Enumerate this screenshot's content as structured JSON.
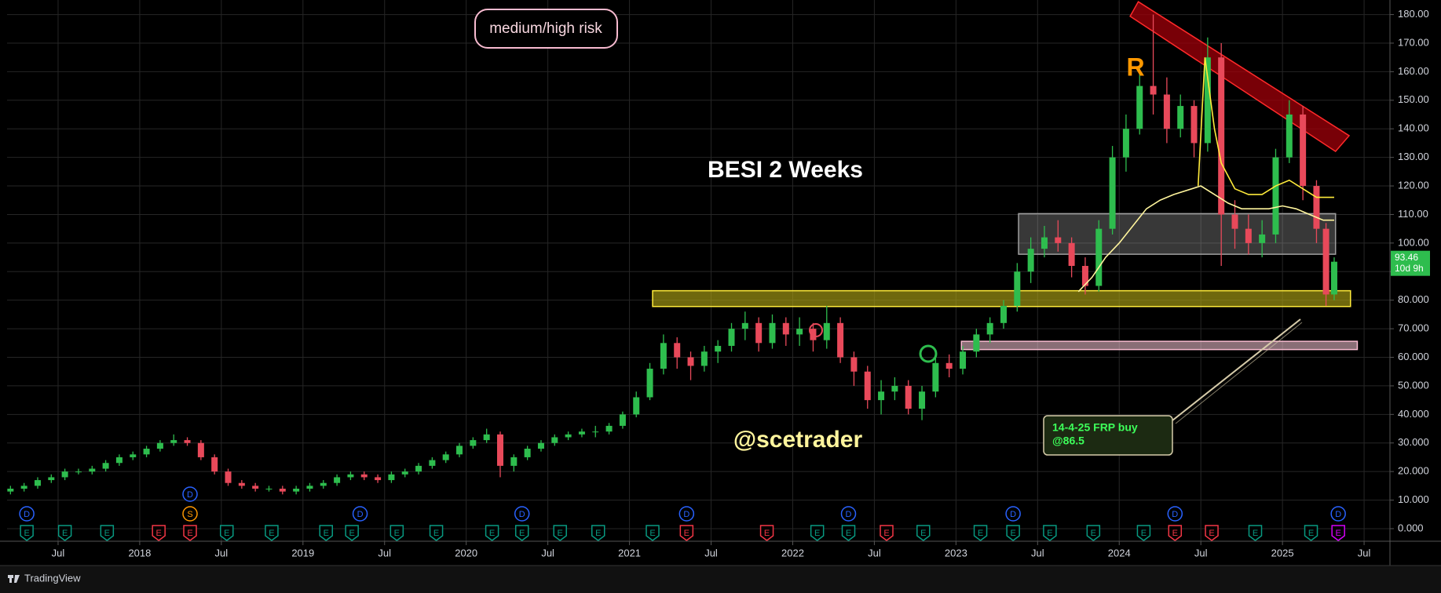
{
  "chart_data": {
    "type": "candlestick",
    "title": "BESI 2 Weeks",
    "watermark": "@scetrader",
    "risk_label": "medium/high risk",
    "pattern_label": "R",
    "annotation": [
      "14-4-25 FRP buy",
      "@86.5"
    ],
    "countdown": "10d 9h",
    "branding": "TradingView",
    "up_color": "#2ebd4e",
    "down_color": "#e8495a",
    "grid": true,
    "xlim": [
      2.25,
      103.9
    ],
    "ylim": [
      -4.4,
      185.1
    ],
    "xticks": [
      {
        "value": 6,
        "label": "Jul"
      },
      {
        "value": 12,
        "label": "2018"
      },
      {
        "value": 18,
        "label": "Jul"
      },
      {
        "value": 24,
        "label": "2019"
      },
      {
        "value": 30,
        "label": "Jul"
      },
      {
        "value": 36,
        "label": "2020"
      },
      {
        "value": 42,
        "label": "Jul"
      },
      {
        "value": 48,
        "label": "2021"
      },
      {
        "value": 54,
        "label": "Jul"
      },
      {
        "value": 60,
        "label": "2022"
      },
      {
        "value": 66,
        "label": "Jul"
      },
      {
        "value": 72,
        "label": "2023"
      },
      {
        "value": 78,
        "label": "Jul"
      },
      {
        "value": 84,
        "label": "2024"
      },
      {
        "value": 90,
        "label": "Jul"
      },
      {
        "value": 96,
        "label": "2025"
      },
      {
        "value": 102,
        "label": "Jul"
      }
    ],
    "yticks": [
      {
        "value": 0,
        "label": "0.000"
      },
      {
        "value": 10,
        "label": "10.000"
      },
      {
        "value": 20,
        "label": "20.000"
      },
      {
        "value": 30,
        "label": "30.000"
      },
      {
        "value": 40,
        "label": "40.000"
      },
      {
        "value": 50,
        "label": "50.000"
      },
      {
        "value": 60,
        "label": "60.000"
      },
      {
        "value": 70,
        "label": "70.000"
      },
      {
        "value": 80,
        "label": "80.000"
      },
      {
        "value": 90,
        "label": "90.000"
      },
      {
        "value": 100,
        "label": "100.00"
      },
      {
        "value": 110,
        "label": "110.00"
      },
      {
        "value": 120,
        "label": "120.00"
      },
      {
        "value": 130,
        "label": "130.00"
      },
      {
        "value": 140,
        "label": "140.00"
      },
      {
        "value": 150,
        "label": "150.00"
      },
      {
        "value": 160,
        "label": "160.00"
      },
      {
        "value": 170,
        "label": "170.00"
      },
      {
        "value": 180,
        "label": "180.00"
      }
    ],
    "x": [
      2.5,
      3.5,
      4.5,
      5.5,
      6.5,
      7.5,
      8.5,
      9.5,
      10.5,
      11.5,
      12.5,
      13.5,
      14.5,
      15.5,
      16.5,
      17.5,
      18.5,
      19.5,
      20.5,
      21.5,
      22.5,
      23.5,
      24.5,
      25.5,
      26.5,
      27.5,
      28.5,
      29.5,
      30.5,
      31.5,
      32.5,
      33.5,
      34.5,
      35.5,
      36.5,
      37.5,
      38.5,
      39.5,
      40.5,
      41.5,
      42.5,
      43.5,
      44.5,
      45.5,
      46.5,
      47.5,
      48.5,
      49.5,
      50.5,
      51.5,
      52.5,
      53.5,
      54.5,
      55.5,
      56.5,
      57.5,
      58.5,
      59.5,
      60.5,
      61.5,
      62.5,
      63.5,
      64.5,
      65.5,
      66.5,
      67.5,
      68.5,
      69.5,
      70.5,
      71.5,
      72.5,
      73.5,
      74.5,
      75.5,
      76.5,
      77.5,
      78.5,
      79.5,
      80.5,
      81.5,
      82.5,
      83.5,
      84.5,
      85.5,
      86.5,
      87.5,
      88.5,
      89.5,
      90.5,
      91.5,
      92.5,
      93.5,
      94.5,
      95.5,
      96.5,
      97.5,
      98.5,
      99.2,
      99.8
    ],
    "open": [
      13,
      14,
      15,
      17,
      18,
      20,
      20,
      21,
      23,
      25,
      26,
      28,
      30,
      31,
      30,
      25,
      20,
      16,
      15,
      14,
      14,
      13,
      14,
      15,
      16,
      18,
      19,
      18,
      17,
      19,
      20,
      22,
      24,
      26,
      29,
      31,
      33,
      22,
      25,
      28,
      30,
      32,
      33,
      34,
      34,
      36,
      40,
      46,
      56,
      65,
      60,
      57,
      62,
      64,
      70,
      72,
      65,
      72,
      68,
      70,
      66,
      72,
      60,
      55,
      45,
      48,
      50,
      42,
      48,
      58,
      56,
      62,
      68,
      72,
      78,
      90,
      98,
      102,
      100,
      92,
      85,
      105,
      130,
      140,
      155,
      152,
      140,
      148,
      135,
      165,
      110,
      105,
      100,
      103,
      130,
      145,
      120,
      105,
      82
    ],
    "high": [
      15,
      16,
      18,
      19,
      21,
      21,
      22,
      24,
      26,
      27,
      29,
      31,
      33,
      32,
      31,
      26,
      21,
      17,
      16,
      15,
      15,
      15,
      16,
      17,
      19,
      20,
      20,
      19,
      20,
      21,
      23,
      25,
      27,
      30,
      32,
      35,
      34,
      26,
      29,
      31,
      33,
      34,
      35,
      36,
      37,
      41,
      48,
      58,
      68,
      67,
      62,
      64,
      66,
      72,
      76,
      74,
      75,
      74,
      74,
      72,
      78,
      74,
      62,
      57,
      52,
      53,
      52,
      50,
      60,
      61,
      64,
      70,
      74,
      80,
      93,
      102,
      106,
      108,
      102,
      95,
      108,
      134,
      145,
      162,
      180,
      158,
      152,
      150,
      172,
      170,
      115,
      110,
      108,
      133,
      150,
      148,
      122,
      107,
      95
    ],
    "low": [
      12,
      13,
      14,
      16,
      17,
      19,
      19,
      20,
      22,
      24,
      25,
      27,
      29,
      29,
      24,
      19,
      15,
      14,
      13,
      13,
      12,
      12,
      13,
      14,
      15,
      17,
      17,
      16,
      16,
      18,
      19,
      21,
      23,
      25,
      28,
      30,
      18,
      20,
      24,
      27,
      29,
      31,
      32,
      32,
      33,
      35,
      39,
      45,
      54,
      56,
      52,
      55,
      58,
      62,
      66,
      62,
      63,
      64,
      64,
      62,
      63,
      58,
      50,
      42,
      40,
      45,
      40,
      38,
      46,
      53,
      54,
      60,
      65,
      70,
      76,
      86,
      95,
      97,
      88,
      82,
      83,
      103,
      125,
      138,
      145,
      135,
      137,
      130,
      132,
      92,
      98,
      96,
      95,
      100,
      128,
      115,
      100,
      78,
      80
    ],
    "close": [
      14,
      15,
      17,
      18,
      20,
      20,
      21,
      23,
      25,
      26,
      28,
      30,
      31,
      30,
      25,
      20,
      16,
      15,
      14,
      14,
      13,
      14,
      15,
      16,
      18,
      19,
      18,
      17,
      19,
      20,
      22,
      24,
      26,
      29,
      31,
      33,
      22,
      25,
      28,
      30,
      32,
      33,
      34,
      34,
      36,
      40,
      46,
      56,
      65,
      60,
      57,
      62,
      64,
      70,
      72,
      65,
      72,
      68,
      70,
      66,
      72,
      60,
      55,
      45,
      48,
      50,
      42,
      48,
      58,
      56,
      62,
      68,
      72,
      78,
      90,
      98,
      102,
      100,
      92,
      85,
      105,
      130,
      140,
      155,
      152,
      140,
      148,
      135,
      165,
      110,
      105,
      100,
      103,
      130,
      145,
      120,
      105,
      82,
      93.46
    ],
    "moving_averages": [
      {
        "color": "#fff59d",
        "x": [
          81,
          82,
          83,
          84,
          85,
          86,
          87,
          88,
          90,
          91,
          92,
          93,
          94,
          95,
          96,
          97,
          98,
          99,
          99.8
        ],
        "values": [
          83,
          88,
          95,
          100,
          106,
          112,
          115,
          117,
          120,
          117,
          114,
          112,
          112,
          112,
          113,
          112,
          110,
          108,
          108
        ]
      },
      {
        "color": "#ffeb3b",
        "x": [
          89.8,
          90.3,
          91,
          91.5,
          92.5,
          93.5,
          94.5,
          95.5,
          96.5,
          97.5,
          98.5,
          99.8
        ],
        "values": [
          120,
          165,
          140,
          128,
          119,
          117,
          117,
          120,
          122,
          119,
          116,
          116
        ]
      }
    ],
    "zones": [
      {
        "fill": "rgba(160,0,10,0.75)",
        "stroke": "#ff2a2a",
        "points": [
          [
            85.4,
            184.5
          ],
          [
            100.9,
            137.6
          ],
          [
            99.9,
            132.1
          ],
          [
            84.8,
            179.4
          ]
        ]
      },
      {
        "fill": "rgba(200,200,200,0.28)",
        "stroke": "#9e9e9e",
        "points": [
          [
            76.6,
            110.3
          ],
          [
            99.9,
            110.3
          ],
          [
            99.9,
            96.1
          ],
          [
            76.6,
            96.1
          ]
        ]
      },
      {
        "fill": "rgba(170,160,20,0.65)",
        "stroke": "#ffeb3b",
        "points": [
          [
            49.7,
            83.3
          ],
          [
            101,
            83.3
          ],
          [
            101,
            77.8
          ],
          [
            49.7,
            77.8
          ]
        ]
      },
      {
        "fill": "rgba(250,200,215,0.55)",
        "stroke": "#f8bbd0",
        "points": [
          [
            72.4,
            65.6
          ],
          [
            101.5,
            65.6
          ],
          [
            101.5,
            62.7
          ],
          [
            72.4,
            62.7
          ]
        ]
      }
    ],
    "dividends": [
      {
        "x": 3.7,
        "label": "D"
      },
      {
        "x": 15.7,
        "label": "D"
      },
      {
        "x": 28.2,
        "label": "D"
      },
      {
        "x": 40.1,
        "label": "D"
      },
      {
        "x": 52.2,
        "label": "D"
      },
      {
        "x": 64.1,
        "label": "D"
      },
      {
        "x": 76.2,
        "label": "D"
      },
      {
        "x": 88.1,
        "label": "D"
      },
      {
        "x": 100.1,
        "label": "D"
      }
    ],
    "dividend_color": "#2962ff",
    "splits": [
      {
        "x": 15.7,
        "label": "S"
      }
    ],
    "split_color": "#ff9800",
    "earnings": [
      {
        "x": 3.7,
        "label": "E",
        "color": "#089981"
      },
      {
        "x": 6.5,
        "label": "E",
        "color": "#089981"
      },
      {
        "x": 9.6,
        "label": "E",
        "color": "#089981"
      },
      {
        "x": 13.4,
        "label": "E",
        "color": "#f23645"
      },
      {
        "x": 15.7,
        "label": "E",
        "color": "#f23645"
      },
      {
        "x": 18.4,
        "label": "E",
        "color": "#089981"
      },
      {
        "x": 21.7,
        "label": "E",
        "color": "#089981"
      },
      {
        "x": 25.7,
        "label": "E",
        "color": "#089981"
      },
      {
        "x": 27.6,
        "label": "E",
        "color": "#089981"
      },
      {
        "x": 30.9,
        "label": "E",
        "color": "#089981"
      },
      {
        "x": 33.8,
        "label": "E",
        "color": "#089981"
      },
      {
        "x": 37.9,
        "label": "E",
        "color": "#089981"
      },
      {
        "x": 40.1,
        "label": "E",
        "color": "#089981"
      },
      {
        "x": 42.9,
        "label": "E",
        "color": "#089981"
      },
      {
        "x": 45.7,
        "label": "E",
        "color": "#089981"
      },
      {
        "x": 49.7,
        "label": "E",
        "color": "#089981"
      },
      {
        "x": 52.2,
        "label": "E",
        "color": "#f23645"
      },
      {
        "x": 58.1,
        "label": "E",
        "color": "#f23645"
      },
      {
        "x": 61.8,
        "label": "E",
        "color": "#089981"
      },
      {
        "x": 64.1,
        "label": "E",
        "color": "#089981"
      },
      {
        "x": 66.9,
        "label": "E",
        "color": "#f23645"
      },
      {
        "x": 69.6,
        "label": "E",
        "color": "#089981"
      },
      {
        "x": 73.8,
        "label": "E",
        "color": "#089981"
      },
      {
        "x": 76.2,
        "label": "E",
        "color": "#089981"
      },
      {
        "x": 78.9,
        "label": "E",
        "color": "#089981"
      },
      {
        "x": 82.1,
        "label": "E",
        "color": "#089981"
      },
      {
        "x": 85.8,
        "label": "E",
        "color": "#089981"
      },
      {
        "x": 88.1,
        "label": "E",
        "color": "#f23645"
      },
      {
        "x": 90.8,
        "label": "E",
        "color": "#f23645"
      },
      {
        "x": 94.0,
        "label": "E",
        "color": "#089981"
      },
      {
        "x": 98.1,
        "label": "E",
        "color": "#089981"
      },
      {
        "x": 100.1,
        "label": "E",
        "color": "#d500f9"
      }
    ]
  }
}
